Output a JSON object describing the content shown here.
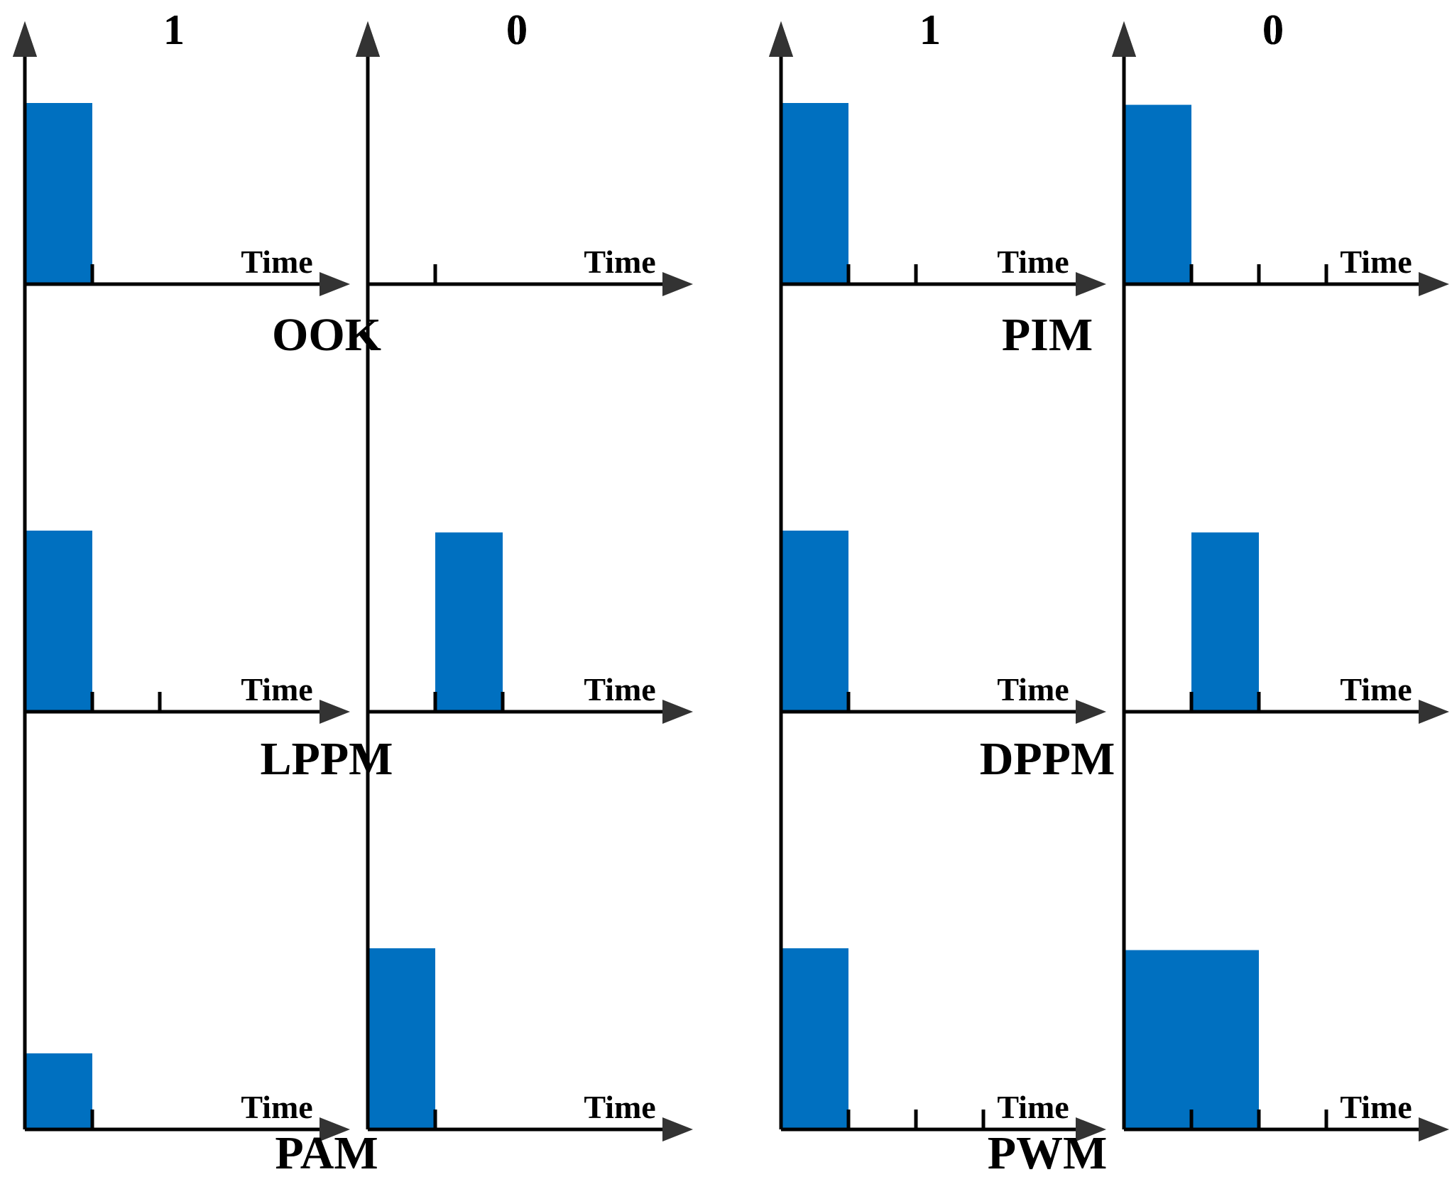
{
  "colors": {
    "pulse": "#0070C0",
    "axis": "#000000",
    "arrowhead": "#333333"
  },
  "time_label": "Time",
  "bit_labels": [
    "1",
    "0"
  ],
  "schemes": [
    {
      "name": "OOK",
      "panels": [
        {
          "bit": "1",
          "slots": 1,
          "pulses": [
            {
              "slot": 0,
              "width": 1,
              "level": 1.0
            }
          ]
        },
        {
          "bit": "0",
          "slots": 1,
          "pulses": []
        }
      ]
    },
    {
      "name": "PIM",
      "panels": [
        {
          "bit": "1",
          "slots": 2,
          "pulses": [
            {
              "slot": 0,
              "width": 1,
              "level": 1.0
            }
          ]
        },
        {
          "bit": "0",
          "slots": 3,
          "pulses": [
            {
              "slot": 0,
              "width": 1,
              "level": 0.99
            }
          ]
        }
      ]
    },
    {
      "name": "LPPM",
      "panels": [
        {
          "bit": "1",
          "slots": 2,
          "pulses": [
            {
              "slot": 0,
              "width": 1,
              "level": 1.0
            }
          ]
        },
        {
          "bit": "0",
          "slots": 2,
          "pulses": [
            {
              "slot": 1,
              "width": 1,
              "level": 0.99
            }
          ]
        }
      ]
    },
    {
      "name": "DPPM",
      "panels": [
        {
          "bit": "1",
          "slots": 1,
          "pulses": [
            {
              "slot": 0,
              "width": 1,
              "level": 1.0
            }
          ]
        },
        {
          "bit": "0",
          "slots": 2,
          "pulses": [
            {
              "slot": 1,
              "width": 1,
              "level": 0.99
            }
          ]
        }
      ]
    },
    {
      "name": "PAM",
      "panels": [
        {
          "bit": "1",
          "slots": 1,
          "pulses": [
            {
              "slot": 0,
              "width": 1,
              "level": 0.42
            }
          ]
        },
        {
          "bit": "0",
          "slots": 1,
          "pulses": [
            {
              "slot": 0,
              "width": 1,
              "level": 1.0
            }
          ]
        }
      ]
    },
    {
      "name": "PWM",
      "panels": [
        {
          "bit": "1",
          "slots": 3,
          "pulses": [
            {
              "slot": 0,
              "width": 1,
              "level": 1.0
            }
          ]
        },
        {
          "bit": "0",
          "slots": 3,
          "pulses": [
            {
              "slot": 0,
              "width": 2,
              "level": 0.99
            }
          ]
        }
      ]
    }
  ]
}
